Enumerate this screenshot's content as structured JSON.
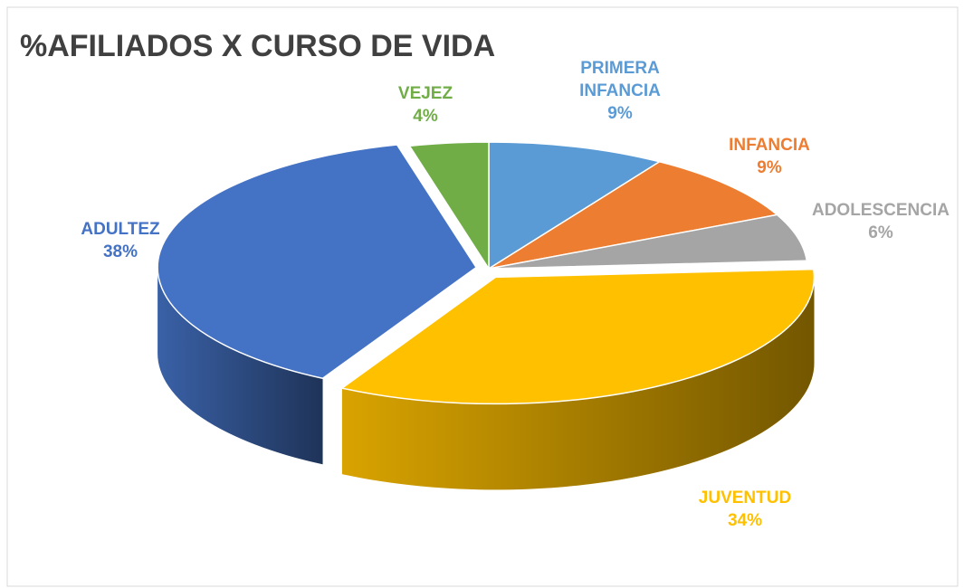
{
  "chart_data": {
    "type": "pie3d",
    "title": "%AFILIADOS X CURSO DE VIDA",
    "categories": [
      "PRIMERA INFANCIA",
      "INFANCIA",
      "ADOLESCENCIA",
      "JUVENTUD",
      "ADULTEZ",
      "VEJEZ"
    ],
    "values": [
      9,
      9,
      6,
      34,
      38,
      4
    ],
    "value_labels": [
      "9%",
      "9%",
      "6%",
      "34%",
      "38%",
      "4%"
    ],
    "colors": [
      "#5b9bd5",
      "#ed7d31",
      "#a5a5a5",
      "#ffc000",
      "#4472c4",
      "#70ad47"
    ]
  }
}
